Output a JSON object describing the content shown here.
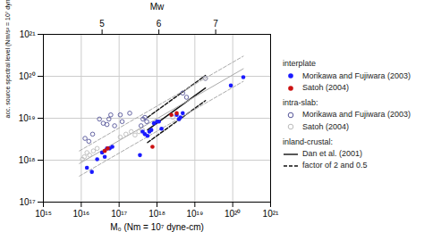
{
  "chart_data": {
    "type": "scatter",
    "xlabel": "M₀ (Nm = 10⁷ dyne-cm)",
    "ylabel": "acc. source spectral level (Nm/s² = 10⁷ dyne-cm/s²)",
    "x2label": "Mw",
    "xlim": [
      15,
      21
    ],
    "xticks": [
      {
        "value": 15,
        "label": "10¹⁵"
      },
      {
        "value": 16,
        "label": "10¹⁶"
      },
      {
        "value": 17,
        "label": "10¹⁷"
      },
      {
        "value": 18,
        "label": "10¹⁸"
      },
      {
        "value": 19,
        "label": "10¹⁹"
      },
      {
        "value": 20,
        "label": "10²⁰"
      },
      {
        "value": 21,
        "label": "10²¹"
      }
    ],
    "ylim": [
      17,
      21
    ],
    "yticks": [
      {
        "value": 17,
        "label": "10¹⁷"
      },
      {
        "value": 18,
        "label": "10¹⁸"
      },
      {
        "value": 19,
        "label": "10¹⁹"
      },
      {
        "value": 20,
        "label": "10²⁰"
      },
      {
        "value": 21,
        "label": "10²¹"
      }
    ],
    "x2ticks": [
      {
        "value": 16.55,
        "label": "5"
      },
      {
        "value": 18.05,
        "label": "6"
      },
      {
        "value": 19.55,
        "label": "7"
      }
    ],
    "grid": true,
    "legend": "right",
    "series": [
      {
        "name": "Morikawa and Fujiwara (2003)",
        "group": "interplate",
        "type": "scatter",
        "marker": "circle",
        "color": "#1a1aff",
        "x": [
          16.15,
          16.28,
          16.42,
          16.55,
          16.62,
          16.68,
          16.75,
          16.82,
          17.55,
          17.62,
          17.68,
          17.75,
          17.8,
          17.85,
          17.92,
          18.0,
          18.05,
          18.12,
          18.52,
          18.58,
          18.62,
          18.68,
          19.95,
          20.28
        ],
        "y": [
          17.82,
          17.72,
          18.02,
          18.18,
          18.08,
          18.28,
          18.28,
          18.32,
          18.12,
          18.68,
          18.62,
          18.58,
          18.68,
          18.72,
          18.88,
          18.92,
          18.92,
          18.75,
          19.08,
          18.98,
          19.02,
          19.12,
          19.78,
          19.98
        ]
      },
      {
        "name": "Satoh (2004)",
        "group": "interplate",
        "type": "scatter",
        "marker": "circle",
        "color": "#cc1111",
        "x": [
          16.62,
          16.7,
          17.88,
          18.38,
          18.52
        ],
        "y": [
          18.22,
          18.28,
          18.32,
          19.08,
          19.12
        ]
      },
      {
        "name": "Morikawa and Fujiwara (2003)",
        "group": "intra-slab:",
        "type": "scatter",
        "marker": "open_circle",
        "color": "#555599",
        "x": [
          16.1,
          16.2,
          16.3,
          16.48,
          16.58,
          16.68,
          16.73,
          16.78,
          16.88,
          17.03,
          17.08,
          17.28,
          17.58,
          17.63,
          17.68,
          17.73,
          18.68,
          18.78,
          19.28
        ],
        "y": [
          18.52,
          18.45,
          18.62,
          18.98,
          18.88,
          18.85,
          18.98,
          19.08,
          18.82,
          19.08,
          18.92,
          19.12,
          18.82,
          18.98,
          19.02,
          18.92,
          19.6,
          19.5,
          19.95
        ]
      },
      {
        "name": "Satoh (2004)",
        "group": "intra-slab:",
        "type": "scatter",
        "marker": "open_circle",
        "color": "#bbbbbb",
        "x": [
          16.03,
          16.08,
          16.15,
          16.22,
          16.32,
          16.42,
          17.03,
          17.18,
          17.32,
          17.42,
          17.52,
          17.62,
          18.42,
          18.58,
          19.28
        ],
        "y": [
          18.02,
          18.08,
          18.18,
          18.12,
          18.22,
          18.28,
          18.55,
          18.62,
          18.68,
          18.6,
          18.68,
          18.72,
          19.02,
          18.98,
          19.95
        ]
      },
      {
        "name": "Dan et al. (2001)",
        "group": "inland-crustal:",
        "type": "line",
        "line_style": "solid",
        "color": "#111111",
        "x": [
          17.75,
          19.28
        ],
        "y": [
          18.72,
          19.72
        ]
      },
      {
        "name": "factor of 2 and 0.5",
        "group": "inland-crustal:",
        "type": "line",
        "line_style": "dashed",
        "color": "#111111",
        "x": [
          17.75,
          19.28,
          null,
          17.75,
          19.28
        ],
        "y": [
          19.02,
          20.02,
          null,
          18.42,
          19.42
        ]
      },
      {
        "type": "line",
        "line_style": "solid",
        "color": "#aaaaaa",
        "x": [
          15.95,
          20.28
        ],
        "y": [
          17.92,
          20.18
        ]
      },
      {
        "type": "line",
        "line_style": "dashed",
        "color": "#aaaaaa",
        "x": [
          15.95,
          20.28,
          null,
          15.95,
          20.28
        ],
        "y": [
          18.22,
          20.48,
          null,
          17.62,
          19.88
        ]
      }
    ]
  }
}
